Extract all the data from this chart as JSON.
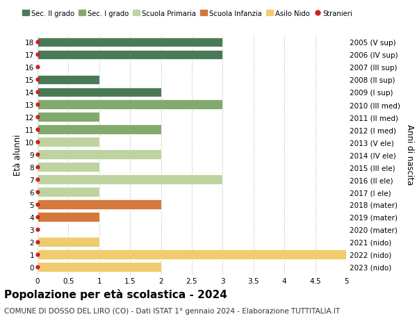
{
  "title": "Popolazione per età scolastica - 2024",
  "subtitle": "COMUNE DI DOSSO DEL LIRO (CO) - Dati ISTAT 1° gennaio 2024 - Elaborazione TUTTITALIA.IT",
  "ylabel_left": "Età alunni",
  "ylabel_right": "Anni di nascita",
  "xlim": [
    0,
    5.0
  ],
  "xticks": [
    0,
    0.5,
    1.0,
    1.5,
    2.0,
    2.5,
    3.0,
    3.5,
    4.0,
    4.5,
    5.0
  ],
  "ages": [
    0,
    1,
    2,
    3,
    4,
    5,
    6,
    7,
    8,
    9,
    10,
    11,
    12,
    13,
    14,
    15,
    16,
    17,
    18
  ],
  "right_labels": [
    "2023 (nido)",
    "2022 (nido)",
    "2021 (nido)",
    "2020 (mater)",
    "2019 (mater)",
    "2018 (mater)",
    "2017 (I ele)",
    "2016 (II ele)",
    "2015 (III ele)",
    "2014 (IV ele)",
    "2013 (V ele)",
    "2012 (I med)",
    "2011 (II med)",
    "2010 (III med)",
    "2009 (I sup)",
    "2008 (II sup)",
    "2007 (III sup)",
    "2006 (IV sup)",
    "2005 (V sup)"
  ],
  "bar_data": [
    {
      "age": 18,
      "value": 3,
      "category": "Sec. II grado",
      "color": "#4a7a55"
    },
    {
      "age": 17,
      "value": 3,
      "category": "Sec. II grado",
      "color": "#4a7a55"
    },
    {
      "age": 16,
      "value": 0,
      "category": "Sec. II grado",
      "color": "#4a7a55"
    },
    {
      "age": 15,
      "value": 1,
      "category": "Sec. II grado",
      "color": "#4a7a55"
    },
    {
      "age": 14,
      "value": 2,
      "category": "Sec. II grado",
      "color": "#4a7a55"
    },
    {
      "age": 13,
      "value": 3,
      "category": "Sec. I grado",
      "color": "#82aa6e"
    },
    {
      "age": 12,
      "value": 1,
      "category": "Sec. I grado",
      "color": "#82aa6e"
    },
    {
      "age": 11,
      "value": 2,
      "category": "Sec. I grado",
      "color": "#82aa6e"
    },
    {
      "age": 10,
      "value": 1,
      "category": "Scuola Primaria",
      "color": "#bdd4a0"
    },
    {
      "age": 9,
      "value": 2,
      "category": "Scuola Primaria",
      "color": "#bdd4a0"
    },
    {
      "age": 8,
      "value": 1,
      "category": "Scuola Primaria",
      "color": "#bdd4a0"
    },
    {
      "age": 7,
      "value": 3,
      "category": "Scuola Primaria",
      "color": "#bdd4a0"
    },
    {
      "age": 6,
      "value": 1,
      "category": "Scuola Primaria",
      "color": "#bdd4a0"
    },
    {
      "age": 5,
      "value": 2,
      "category": "Scuola Infanzia",
      "color": "#d4783c"
    },
    {
      "age": 4,
      "value": 1,
      "category": "Scuola Infanzia",
      "color": "#d4783c"
    },
    {
      "age": 3,
      "value": 0,
      "category": "Scuola Infanzia",
      "color": "#d4783c"
    },
    {
      "age": 2,
      "value": 1,
      "category": "Asilo Nido",
      "color": "#f0cc6e"
    },
    {
      "age": 1,
      "value": 5,
      "category": "Asilo Nido",
      "color": "#f0cc6e"
    },
    {
      "age": 0,
      "value": 2,
      "category": "Asilo Nido",
      "color": "#f0cc6e"
    }
  ],
  "colors": {
    "Sec. II grado": "#4a7a55",
    "Sec. I grado": "#82aa6e",
    "Scuola Primaria": "#bdd4a0",
    "Scuola Infanzia": "#d4783c",
    "Asilo Nido": "#f0cc6e",
    "Stranieri": "#cc2222"
  },
  "background_color": "#ffffff",
  "grid_color": "#cccccc",
  "title_fontsize": 11,
  "subtitle_fontsize": 7.5,
  "tick_fontsize": 7.5,
  "bar_height": 0.75
}
